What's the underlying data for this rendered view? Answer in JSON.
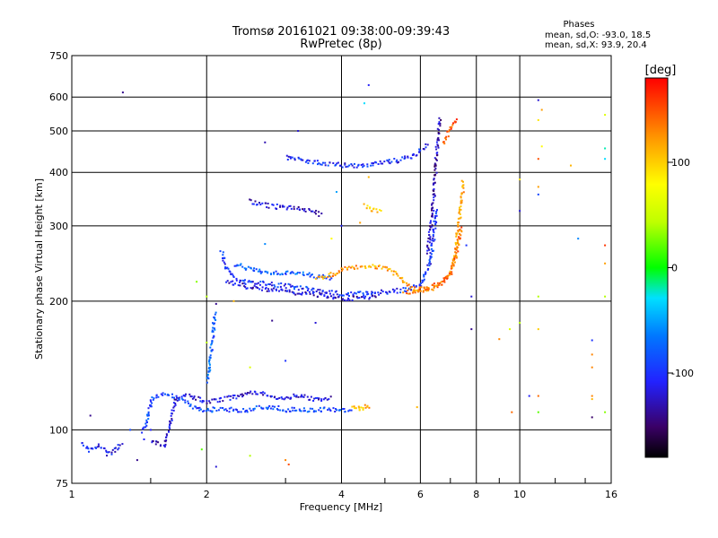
{
  "chart_data": {
    "type": "scatter",
    "title": "Tromsø 20161021 09:38:00-09:39:43",
    "subtitle": "RwPretec (8p)",
    "xlabel": "Frequency [MHz]",
    "ylabel": "Stationary phase Virtual Height [km]",
    "x_scale": "log",
    "y_scale": "log",
    "xlim": [
      1,
      16
    ],
    "ylim": [
      75,
      750
    ],
    "x_ticks": [
      {
        "value": 1,
        "label": "1"
      },
      {
        "value": 2,
        "label": "2"
      },
      {
        "value": 4,
        "label": "4"
      },
      {
        "value": 6,
        "label": "6"
      },
      {
        "value": 8,
        "label": "8"
      },
      {
        "value": 10,
        "label": "10"
      },
      {
        "value": 16,
        "label": "16"
      }
    ],
    "x_minor_ticks": [
      1.5,
      3,
      5,
      7,
      9,
      12,
      14
    ],
    "y_ticks": [
      {
        "value": 75,
        "label": "75"
      },
      {
        "value": 100,
        "label": "100"
      },
      {
        "value": 200,
        "label": "200"
      },
      {
        "value": 300,
        "label": "300"
      },
      {
        "value": 400,
        "label": "400"
      },
      {
        "value": 500,
        "label": "500"
      },
      {
        "value": 600,
        "label": "600"
      },
      {
        "value": 750,
        "label": "750"
      }
    ],
    "grid": true,
    "legend": {
      "heading": "Phases",
      "line_o": "mean, sd,O: -93.0, 18.5",
      "line_x": "mean, sd,X:  93.9, 20.4",
      "placement": "top-right"
    },
    "colorbar": {
      "label": "[deg]",
      "range": [
        -180,
        180
      ],
      "ticks": [
        {
          "value": 100,
          "label": "100"
        },
        {
          "value": 0,
          "label": "0"
        },
        {
          "value": -100,
          "label": "-100"
        }
      ]
    },
    "traces": [
      {
        "phase": -110,
        "x": [
          1.05,
          1.1,
          1.15,
          1.2,
          1.25,
          1.3
        ],
        "y": [
          93,
          90,
          92,
          88,
          91,
          93
        ]
      },
      {
        "phase": -90,
        "x": [
          1.42,
          1.45,
          1.5,
          1.55,
          1.6,
          1.65,
          1.7,
          1.75,
          1.8,
          1.9,
          2.0,
          2.1,
          2.2,
          2.3,
          2.4,
          2.5,
          2.6,
          2.7,
          2.8,
          2.9,
          3.0,
          3.2,
          3.4,
          3.6,
          3.8,
          4.0,
          4.2
        ],
        "y": [
          100,
          102,
          118,
          121,
          122,
          121,
          120,
          118,
          116,
          112,
          112,
          112,
          112,
          112,
          112,
          112,
          113,
          113,
          113,
          113,
          112,
          112,
          112,
          112,
          112,
          112,
          112
        ]
      },
      {
        "phase": -120,
        "x": [
          1.5,
          1.6,
          1.7,
          1.8,
          1.9,
          2.0,
          2.3,
          2.6,
          2.9,
          3.2,
          3.5,
          3.8
        ],
        "y": [
          95,
          92,
          118,
          121,
          119,
          117,
          120,
          123,
          119,
          121,
          118,
          120
        ]
      },
      {
        "phase": 110,
        "x": [
          4.2,
          4.3,
          4.4,
          4.5,
          4.6
        ],
        "y": [
          113,
          114,
          112,
          115,
          113
        ]
      },
      {
        "phase": -80,
        "x": [
          2.0,
          2.03,
          2.06,
          2.08
        ],
        "y": [
          130,
          150,
          170,
          190
        ]
      },
      {
        "phase": -100,
        "x": [
          2.15,
          2.2,
          2.3,
          2.5,
          2.8,
          3.0,
          3.3,
          3.6,
          4.0,
          4.4,
          4.8,
          5.2,
          5.6,
          6.0,
          6.3,
          6.5
        ],
        "y": [
          262,
          240,
          228,
          222,
          220,
          218,
          215,
          212,
          209,
          209,
          210,
          212,
          214,
          220,
          250,
          330
        ]
      },
      {
        "phase": -120,
        "x": [
          2.2,
          2.4,
          2.6,
          2.8,
          3.0,
          3.2,
          3.5,
          3.8,
          4.0,
          4.2,
          4.5,
          4.8
        ],
        "y": [
          225,
          218,
          215,
          213,
          212,
          210,
          208,
          205,
          203,
          204,
          205,
          207
        ]
      },
      {
        "phase": -80,
        "x": [
          2.3,
          2.5,
          2.7,
          2.9,
          3.2,
          3.5,
          3.8
        ],
        "y": [
          245,
          238,
          235,
          234,
          233,
          230,
          228
        ]
      },
      {
        "phase": -130,
        "x": [
          6.2,
          6.3,
          6.4,
          6.45,
          6.5,
          6.55,
          6.6
        ],
        "y": [
          260,
          300,
          350,
          400,
          450,
          500,
          540
        ]
      },
      {
        "phase": -105,
        "x": [
          3.0,
          3.2,
          3.5,
          3.8,
          4.0,
          4.3,
          4.6,
          5.0,
          5.4,
          5.8,
          6.0,
          6.2
        ],
        "y": [
          435,
          430,
          425,
          420,
          418,
          417,
          420,
          425,
          430,
          440,
          455,
          470
        ]
      },
      {
        "phase": -120,
        "x": [
          2.5,
          2.6,
          2.8,
          3.0,
          3.2,
          3.4,
          3.6
        ],
        "y": [
          345,
          338,
          335,
          332,
          330,
          325,
          320
        ]
      },
      {
        "phase": 120,
        "x": [
          3.5,
          3.8,
          4.0,
          4.2,
          4.4,
          4.6,
          4.8,
          5.0,
          5.2,
          5.5,
          5.8,
          6.0,
          6.3,
          6.6,
          6.9,
          7.1,
          7.2,
          7.3,
          7.4,
          7.45
        ],
        "y": [
          228,
          232,
          238,
          240,
          242,
          243,
          242,
          240,
          235,
          222,
          215,
          213,
          215,
          220,
          230,
          250,
          280,
          310,
          350,
          385
        ]
      },
      {
        "phase": 140,
        "x": [
          5.5,
          5.8,
          6.1,
          6.4,
          6.7,
          7.0,
          7.2,
          7.4
        ],
        "y": [
          210,
          212,
          215,
          218,
          222,
          235,
          260,
          300
        ]
      },
      {
        "phase": 100,
        "x": [
          4.5,
          4.6,
          4.7,
          4.8,
          4.9
        ],
        "y": [
          335,
          330,
          328,
          326,
          325
        ]
      },
      {
        "phase": 150,
        "x": [
          6.7,
          6.8,
          6.9,
          7.0,
          7.1,
          7.2
        ],
        "y": [
          470,
          480,
          495,
          510,
          525,
          540
        ]
      }
    ],
    "scattered_points": [
      {
        "x": 1.3,
        "y": 615,
        "phase": -140
      },
      {
        "x": 4.6,
        "y": 640,
        "phase": -110
      },
      {
        "x": 4.5,
        "y": 580,
        "phase": -30
      },
      {
        "x": 11.0,
        "y": 590,
        "phase": -120
      },
      {
        "x": 11.2,
        "y": 560,
        "phase": 120
      },
      {
        "x": 11.0,
        "y": 530,
        "phase": 90
      },
      {
        "x": 11.2,
        "y": 460,
        "phase": 80
      },
      {
        "x": 11.0,
        "y": 430,
        "phase": 150
      },
      {
        "x": 15.5,
        "y": 545,
        "phase": 60
      },
      {
        "x": 15.5,
        "y": 455,
        "phase": -20
      },
      {
        "x": 15.5,
        "y": 430,
        "phase": -30
      },
      {
        "x": 13.0,
        "y": 415,
        "phase": 110
      },
      {
        "x": 10.0,
        "y": 385,
        "phase": 90
      },
      {
        "x": 11.0,
        "y": 370,
        "phase": 120
      },
      {
        "x": 11.0,
        "y": 355,
        "phase": -90
      },
      {
        "x": 10.0,
        "y": 325,
        "phase": -120
      },
      {
        "x": 13.5,
        "y": 280,
        "phase": -60
      },
      {
        "x": 15.5,
        "y": 270,
        "phase": 160
      },
      {
        "x": 7.6,
        "y": 270,
        "phase": -100
      },
      {
        "x": 15.5,
        "y": 245,
        "phase": 120
      },
      {
        "x": 7.8,
        "y": 205,
        "phase": -120
      },
      {
        "x": 11.0,
        "y": 205,
        "phase": 40
      },
      {
        "x": 15.5,
        "y": 205,
        "phase": 40
      },
      {
        "x": 7.8,
        "y": 172,
        "phase": -140
      },
      {
        "x": 9.5,
        "y": 172,
        "phase": 60
      },
      {
        "x": 9.0,
        "y": 163,
        "phase": 130
      },
      {
        "x": 10.0,
        "y": 178,
        "phase": 40
      },
      {
        "x": 11.0,
        "y": 172,
        "phase": 100
      },
      {
        "x": 14.5,
        "y": 162,
        "phase": -100
      },
      {
        "x": 14.5,
        "y": 150,
        "phase": 130
      },
      {
        "x": 14.5,
        "y": 140,
        "phase": 130
      },
      {
        "x": 10.5,
        "y": 120,
        "phase": -110
      },
      {
        "x": 11.0,
        "y": 120,
        "phase": 140
      },
      {
        "x": 14.5,
        "y": 120,
        "phase": 130
      },
      {
        "x": 14.5,
        "y": 118,
        "phase": 110
      },
      {
        "x": 15.5,
        "y": 110,
        "phase": 30
      },
      {
        "x": 9.6,
        "y": 110,
        "phase": 140
      },
      {
        "x": 11.0,
        "y": 110,
        "phase": 20
      },
      {
        "x": 14.5,
        "y": 107,
        "phase": -150
      },
      {
        "x": 5.9,
        "y": 113,
        "phase": 110
      },
      {
        "x": 1.1,
        "y": 108,
        "phase": -140
      },
      {
        "x": 1.5,
        "y": 100,
        "phase": -110
      },
      {
        "x": 1.35,
        "y": 100,
        "phase": -90
      },
      {
        "x": 1.45,
        "y": 95,
        "phase": -110
      },
      {
        "x": 1.4,
        "y": 85,
        "phase": -140
      },
      {
        "x": 2.1,
        "y": 82,
        "phase": -120
      },
      {
        "x": 2.5,
        "y": 87,
        "phase": 40
      },
      {
        "x": 3.0,
        "y": 85,
        "phase": 130
      },
      {
        "x": 3.05,
        "y": 83,
        "phase": 150
      },
      {
        "x": 1.95,
        "y": 90,
        "phase": 20
      },
      {
        "x": 2.0,
        "y": 205,
        "phase": 40
      },
      {
        "x": 2.1,
        "y": 197,
        "phase": -140
      },
      {
        "x": 2.3,
        "y": 200,
        "phase": 110
      },
      {
        "x": 1.9,
        "y": 222,
        "phase": 30
      },
      {
        "x": 2.8,
        "y": 180,
        "phase": -140
      },
      {
        "x": 3.5,
        "y": 178,
        "phase": -120
      },
      {
        "x": 2.5,
        "y": 140,
        "phase": 60
      },
      {
        "x": 2.0,
        "y": 160,
        "phase": 40
      },
      {
        "x": 3.0,
        "y": 145,
        "phase": -100
      },
      {
        "x": 2.7,
        "y": 470,
        "phase": -130
      },
      {
        "x": 3.2,
        "y": 500,
        "phase": -120
      },
      {
        "x": 5.8,
        "y": 440,
        "phase": -110
      },
      {
        "x": 4.6,
        "y": 390,
        "phase": 110
      },
      {
        "x": 3.9,
        "y": 360,
        "phase": -50
      },
      {
        "x": 4.4,
        "y": 305,
        "phase": 120
      },
      {
        "x": 4.0,
        "y": 300,
        "phase": -110
      },
      {
        "x": 2.7,
        "y": 272,
        "phase": -60
      },
      {
        "x": 3.8,
        "y": 280,
        "phase": 80
      }
    ]
  }
}
